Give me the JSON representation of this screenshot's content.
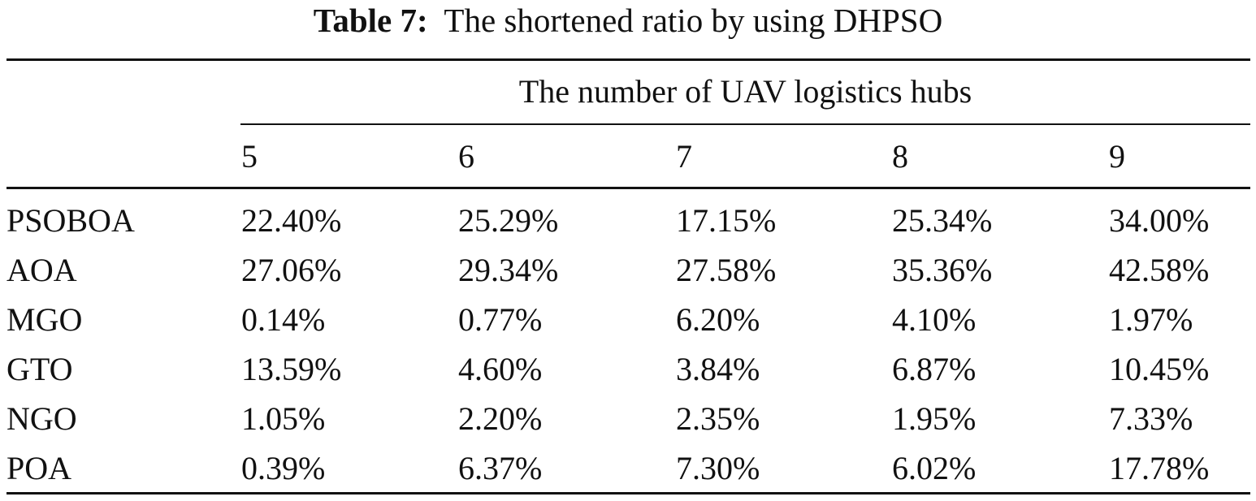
{
  "caption": {
    "label": "Table 7:",
    "text": "The shortened ratio by using DHPSO"
  },
  "table": {
    "spanner": "The number of UAV logistics hubs",
    "columns": [
      "5",
      "6",
      "7",
      "8",
      "9"
    ],
    "rows": [
      {
        "name": "PSOBOA",
        "values": [
          "22.40%",
          "25.29%",
          "17.15%",
          "25.34%",
          "34.00%"
        ]
      },
      {
        "name": "AOA",
        "values": [
          "27.06%",
          "29.34%",
          "27.58%",
          "35.36%",
          "42.58%"
        ]
      },
      {
        "name": "MGO",
        "values": [
          "0.14%",
          "0.77%",
          "6.20%",
          "4.10%",
          "1.97%"
        ]
      },
      {
        "name": "GTO",
        "values": [
          "13.59%",
          "4.60%",
          "3.84%",
          "6.87%",
          "10.45%"
        ]
      },
      {
        "name": "NGO",
        "values": [
          "1.05%",
          "2.20%",
          "2.35%",
          "1.95%",
          "7.33%"
        ]
      },
      {
        "name": "POA",
        "values": [
          "0.39%",
          "6.37%",
          "7.30%",
          "6.02%",
          "17.78%"
        ]
      }
    ]
  }
}
